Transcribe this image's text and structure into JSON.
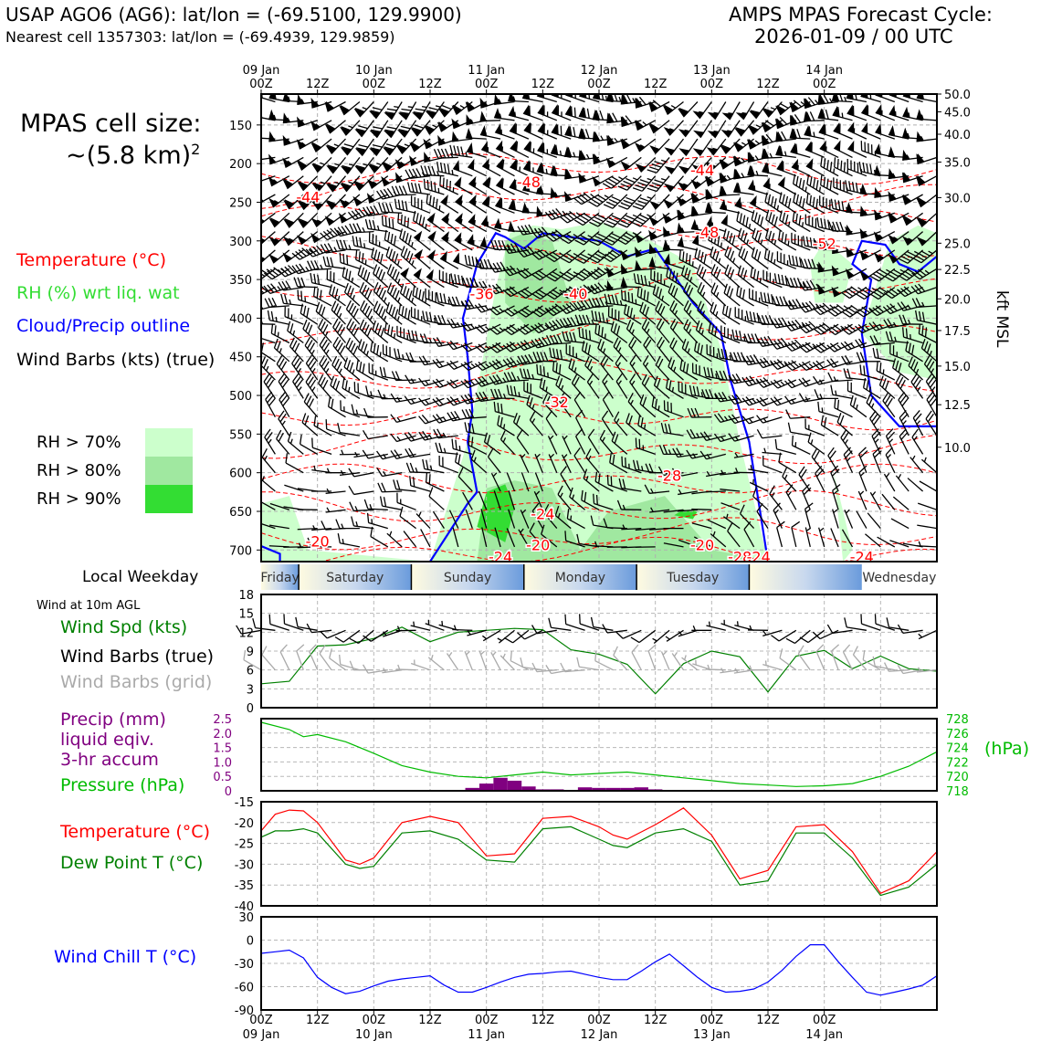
{
  "header": {
    "station_line": "USAP AGO6 (AG6): lat/lon = (-69.5100, 129.9900)",
    "cell_line": "Nearest cell 1357303: lat/lon = (-69.4939, 129.9859)",
    "cycle_line1": "AMPS MPAS Forecast Cycle:",
    "cycle_line2": "2026-01-09 / 00 UTC"
  },
  "cell_size": {
    "line1": "MPAS cell size:",
    "line2": "~(5.8 km)",
    "sup": "2"
  },
  "legend_main": {
    "temperature": "Temperature (°C)",
    "rh": "RH (%) wrt liq. wat",
    "cloud": "Cloud/Precip outline",
    "wind": "Wind Barbs (kts) (true)"
  },
  "rh_legend": {
    "items": [
      {
        "label": "RH > 70%",
        "color": "#ccffcc"
      },
      {
        "label": "RH > 80%",
        "color": "#a0e8a0"
      },
      {
        "label": "RH > 90%",
        "color": "#33dd33"
      }
    ]
  },
  "weekday": {
    "title": "Local Weekday",
    "days": [
      "Friday",
      "Saturday",
      "Sunday",
      "Monday",
      "Tuesday",
      "Wednesday"
    ]
  },
  "panel_labels": {
    "wind_10m": "Wind at 10m AGL",
    "wind_spd": "Wind Spd (kts)",
    "wind_barbs_true": "Wind Barbs (true)",
    "wind_barbs_grid": "Wind Barbs (grid)",
    "precip1": "Precip (mm)",
    "precip2": "liquid eqiv.",
    "precip3": "3-hr accum",
    "pressure": "Pressure (hPa)",
    "pressure_unit": "(hPa)",
    "temp": "Temperature (°C)",
    "dewpoint": "Dew Point T (°C)",
    "windchill": "Wind Chill T (°C)",
    "kft": "kft MSL"
  },
  "colors": {
    "temperature": "#ff0000",
    "rh_text": "#33cc33",
    "cloud": "#0000ff",
    "wind_spd": "#008000",
    "grid_barbs": "#aaaaaa",
    "precip": "#800080",
    "pressure": "#00bb00",
    "windchill": "#0000ff"
  },
  "chart_data": [
    {
      "type": "line",
      "panel": "time-height cross section",
      "x_top_ticks": [
        "00Z\n09 Jan",
        "12Z",
        "00Z\n10 Jan",
        "12Z",
        "00Z\n11 Jan",
        "12Z",
        "00Z\n12 Jan",
        "12Z",
        "00Z\n13 Jan",
        "12Z",
        "00Z\n14 Jan"
      ],
      "y_left_pressure_hpa": [
        150,
        200,
        250,
        300,
        350,
        400,
        450,
        500,
        550,
        600,
        650,
        700
      ],
      "y_right_kft": [
        50.0,
        45.0,
        40.0,
        35.0,
        30.0,
        25.0,
        22.5,
        20.0,
        17.5,
        15.0,
        12.5,
        10.0
      ],
      "ylim_hpa": [
        110,
        715
      ],
      "temperature_labels": [
        {
          "value": "-44",
          "hour": 10,
          "p": 245
        },
        {
          "value": "-48",
          "hour": 57,
          "p": 225
        },
        {
          "value": "-44",
          "hour": 94,
          "p": 210
        },
        {
          "value": "-48",
          "hour": 95,
          "p": 290
        },
        {
          "value": "-52",
          "hour": 120,
          "p": 305
        },
        {
          "value": "-36",
          "hour": 47,
          "p": 370
        },
        {
          "value": "-40",
          "hour": 67,
          "p": 370
        },
        {
          "value": "-32",
          "hour": 63,
          "p": 510
        },
        {
          "value": "-28",
          "hour": 87,
          "p": 605
        },
        {
          "value": "-24",
          "hour": 60,
          "p": 655
        },
        {
          "value": "-20",
          "hour": 12,
          "p": 690
        },
        {
          "value": "-24",
          "hour": 51,
          "p": 710
        },
        {
          "value": "-20",
          "hour": 59,
          "p": 695
        },
        {
          "value": "-20",
          "hour": 94,
          "p": 695
        },
        {
          "value": "-28",
          "hour": 102,
          "p": 710
        },
        {
          "value": "-24",
          "hour": 106,
          "p": 710
        },
        {
          "value": "-24",
          "hour": 128,
          "p": 710
        }
      ]
    },
    {
      "type": "line",
      "panel": "10m wind",
      "ylim": [
        0,
        18
      ],
      "yticks": [
        0,
        3,
        6,
        9,
        12,
        15,
        18
      ],
      "series": [
        {
          "name": "Wind Spd (kts)",
          "x": [
            0,
            6,
            12,
            18,
            24,
            30,
            36,
            42,
            48,
            54,
            60,
            66,
            72,
            78,
            84,
            90,
            96,
            102,
            108,
            114,
            120,
            126,
            132,
            138,
            144
          ],
          "y": [
            3.8,
            4.2,
            9.8,
            10,
            11,
            12.8,
            10.5,
            12,
            12.3,
            12.6,
            12.4,
            9.2,
            8.5,
            6.9,
            2.2,
            7,
            9,
            8.1,
            2.5,
            8.2,
            9.1,
            6.2,
            8.2,
            6.2,
            5.8
          ]
        }
      ]
    },
    {
      "type": "bar",
      "panel": "precip and pressure",
      "ylim_precip": [
        0,
        2.5
      ],
      "yticks_precip": [
        0,
        0.5,
        1.0,
        1.5,
        2.0,
        2.5
      ],
      "ylim_pressure": [
        718,
        728
      ],
      "yticks_pressure": [
        718,
        720,
        722,
        724,
        726,
        728
      ],
      "precip": {
        "x": [
          45,
          48,
          51,
          54,
          57,
          60,
          63,
          66,
          69,
          72,
          75,
          78,
          81,
          84,
          87
        ],
        "y": [
          0.1,
          0.25,
          0.45,
          0.35,
          0.15,
          0.05,
          0.05,
          0,
          0.12,
          0.1,
          0.1,
          0.1,
          0.12,
          0.05,
          0
        ]
      },
      "pressure": {
        "x": [
          0,
          6,
          9,
          12,
          18,
          24,
          30,
          36,
          42,
          48,
          54,
          60,
          66,
          72,
          78,
          84,
          90,
          96,
          102,
          108,
          114,
          120,
          126,
          132,
          138,
          144
        ],
        "y": [
          727.5,
          726.5,
          725.5,
          725.8,
          724.8,
          723.2,
          721.5,
          720.6,
          720.0,
          719.8,
          720.2,
          720.6,
          720.2,
          720.4,
          720.6,
          720.2,
          719.8,
          719.4,
          719.0,
          718.8,
          718.6,
          718.7,
          719.0,
          720.0,
          721.4,
          723.4
        ]
      }
    },
    {
      "type": "line",
      "panel": "temperature and dew point",
      "ylim": [
        -40,
        -15
      ],
      "yticks": [
        -40,
        -35,
        -30,
        -25,
        -20,
        -15
      ],
      "series": [
        {
          "name": "Temperature (°C)",
          "x": [
            0,
            3,
            6,
            9,
            12,
            18,
            21,
            24,
            30,
            36,
            42,
            48,
            54,
            60,
            66,
            72,
            75,
            78,
            84,
            90,
            96,
            102,
            108,
            114,
            120,
            126,
            132,
            138,
            144
          ],
          "y": [
            -22,
            -18,
            -17,
            -17.2,
            -20,
            -29,
            -30,
            -28.5,
            -20,
            -18.5,
            -20,
            -28,
            -27.5,
            -19,
            -18.5,
            -21,
            -23,
            -24,
            -20.5,
            -16.5,
            -23,
            -33.5,
            -31.5,
            -21,
            -20.5,
            -27,
            -37,
            -34,
            -27
          ]
        },
        {
          "name": "Dew Point T (°C)",
          "x": [
            0,
            3,
            6,
            9,
            12,
            18,
            21,
            24,
            30,
            36,
            42,
            48,
            54,
            60,
            66,
            72,
            75,
            78,
            84,
            90,
            96,
            102,
            108,
            114,
            120,
            126,
            132,
            138,
            144
          ],
          "y": [
            -23.5,
            -22,
            -22,
            -21.5,
            -22.5,
            -30,
            -31,
            -30.5,
            -22.5,
            -22,
            -24,
            -29,
            -29.5,
            -21.5,
            -21,
            -24,
            -25.5,
            -26,
            -22.5,
            -21.5,
            -24.5,
            -35,
            -34,
            -22.5,
            -22.5,
            -28.5,
            -37.5,
            -35.5,
            -30
          ]
        }
      ]
    },
    {
      "type": "line",
      "panel": "wind chill",
      "ylim": [
        -90,
        30
      ],
      "yticks": [
        -90,
        -60,
        -30,
        0,
        30
      ],
      "x_bottom_ticks": [
        "00Z\n09 Jan",
        "12Z",
        "00Z\n10 Jan",
        "12Z",
        "00Z\n11 Jan",
        "12Z",
        "00Z\n12 Jan",
        "12Z",
        "00Z\n13 Jan",
        "12Z",
        "00Z\n14 Jan"
      ],
      "series": [
        {
          "name": "Wind Chill T (°C)",
          "x": [
            0,
            3,
            6,
            9,
            12,
            15,
            18,
            21,
            24,
            27,
            30,
            33,
            36,
            39,
            42,
            45,
            48,
            51,
            54,
            57,
            60,
            63,
            66,
            69,
            72,
            75,
            78,
            81,
            84,
            87,
            90,
            93,
            96,
            99,
            102,
            105,
            108,
            111,
            114,
            117,
            120,
            123,
            126,
            129,
            132,
            135,
            138,
            141,
            144
          ],
          "y": [
            -17,
            -15,
            -13,
            -23,
            -48,
            -61,
            -69,
            -66,
            -59,
            -53,
            -50,
            -48,
            -46,
            -58,
            -67,
            -67,
            -61,
            -54,
            -48,
            -44,
            -43,
            -41,
            -40,
            -44,
            -48,
            -51,
            -51,
            -40,
            -28,
            -18,
            -33,
            -48,
            -61,
            -67,
            -66,
            -63,
            -54,
            -39,
            -21,
            -6,
            -6,
            -28,
            -48,
            -67,
            -71,
            -67,
            -63,
            -58,
            -46
          ]
        }
      ]
    }
  ]
}
